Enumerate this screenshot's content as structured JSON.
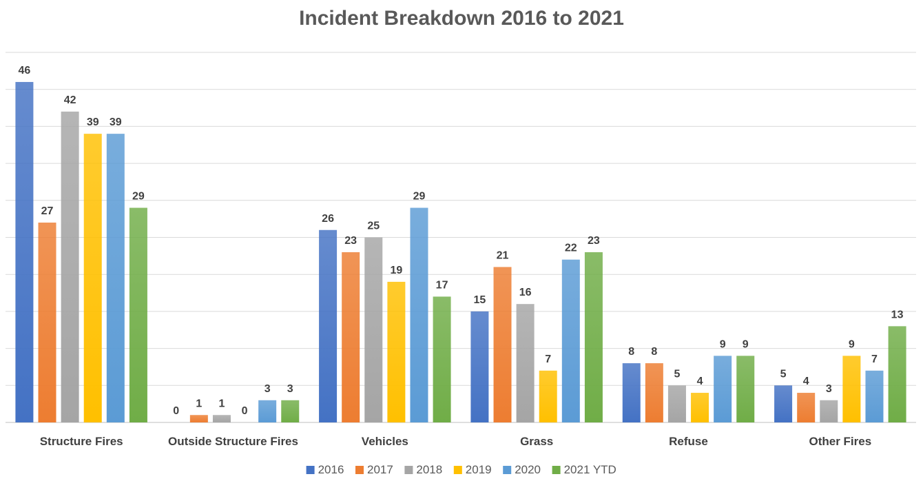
{
  "chart_data": {
    "type": "bar",
    "title": "Incident Breakdown 2016 to 2021",
    "categories": [
      "Structure Fires",
      "Outside Structure Fires",
      "Vehicles",
      "Grass",
      "Refuse",
      "Other Fires"
    ],
    "series": [
      {
        "name": "2016",
        "color": "#4472c4",
        "values": [
          46,
          0,
          26,
          15,
          8,
          5
        ]
      },
      {
        "name": "2017",
        "color": "#ed7d31",
        "values": [
          27,
          1,
          23,
          21,
          8,
          4
        ]
      },
      {
        "name": "2018",
        "color": "#a5a5a5",
        "values": [
          42,
          1,
          25,
          16,
          5,
          3
        ]
      },
      {
        "name": "2019",
        "color": "#ffc000",
        "values": [
          39,
          0,
          19,
          7,
          4,
          9
        ]
      },
      {
        "name": "2020",
        "color": "#5b9bd5",
        "values": [
          39,
          3,
          29,
          22,
          9,
          7
        ]
      },
      {
        "name": "2021 YTD",
        "color": "#70ad47",
        "values": [
          29,
          3,
          17,
          23,
          9,
          13
        ]
      }
    ],
    "ylim": [
      0,
      50
    ],
    "grid": true,
    "legend": "bottom"
  }
}
